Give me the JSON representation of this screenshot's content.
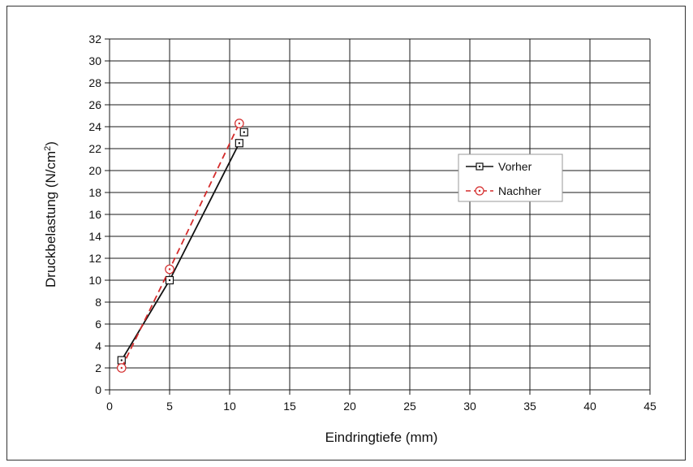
{
  "chart_data": {
    "type": "line",
    "xlabel": "Eindringtiefe (mm)",
    "ylabel_main": "Druckbelastung (N/cm",
    "ylabel_sup": "2",
    "ylabel_end": ")",
    "xlim": [
      0,
      45
    ],
    "ylim": [
      0,
      32
    ],
    "xticks": [
      0,
      5,
      10,
      15,
      20,
      25,
      30,
      35,
      40,
      45
    ],
    "yticks": [
      0,
      2,
      4,
      6,
      8,
      10,
      12,
      14,
      16,
      18,
      20,
      22,
      24,
      26,
      28,
      30,
      32
    ],
    "grid": true,
    "legend_position": "right-middle",
    "series": [
      {
        "name": "Vorher",
        "color": "#111111",
        "line_style": "solid",
        "marker": "square-dot",
        "line_points": [
          [
            1,
            2.7
          ],
          [
            5,
            10
          ],
          [
            10.8,
            22.5
          ]
        ],
        "points": [
          [
            1,
            2.7
          ],
          [
            5,
            10
          ],
          [
            10.8,
            22.5
          ],
          [
            11.2,
            23.5
          ]
        ]
      },
      {
        "name": "Nachher",
        "color": "#d42b2b",
        "line_style": "dashed",
        "marker": "circle-dot",
        "line_points": [
          [
            1,
            2
          ],
          [
            5,
            11
          ],
          [
            10.8,
            24.3
          ]
        ],
        "points": [
          [
            1,
            2
          ],
          [
            5,
            11
          ],
          [
            10.8,
            24.3
          ]
        ]
      }
    ]
  }
}
